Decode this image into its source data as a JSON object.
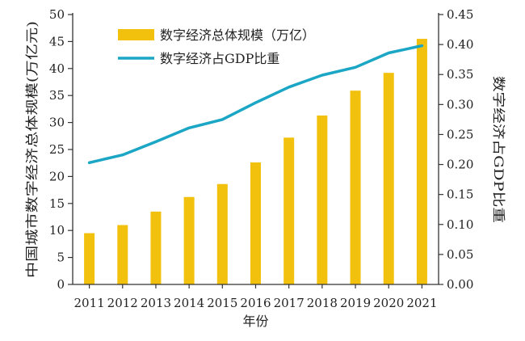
{
  "chart_data": {
    "type": "bar+line",
    "x": [
      "2011",
      "2012",
      "2013",
      "2014",
      "2015",
      "2016",
      "2017",
      "2018",
      "2019",
      "2020",
      "2021"
    ],
    "series": [
      {
        "name": "数字经济总体规模（万亿）",
        "kind": "bar",
        "axis": "left",
        "color": "#f2c10e",
        "values": [
          9.5,
          11.0,
          13.5,
          16.2,
          18.6,
          22.6,
          27.2,
          31.3,
          35.9,
          39.2,
          45.5
        ]
      },
      {
        "name": "数字经济占GDP比重",
        "kind": "line",
        "axis": "right",
        "color": "#1aa6c4",
        "values": [
          0.203,
          0.216,
          0.238,
          0.261,
          0.275,
          0.303,
          0.329,
          0.349,
          0.362,
          0.386,
          0.398
        ]
      }
    ],
    "xlabel": "年份",
    "ylabel_left": "中国城市数字经济总体规模(万亿元)",
    "ylabel_right": "数字经济占GDP比重",
    "ylim_left": [
      0,
      50
    ],
    "yticks_left": [
      "0",
      "5",
      "10",
      "15",
      "20",
      "25",
      "30",
      "35",
      "40",
      "45",
      "50"
    ],
    "ylim_right": [
      0,
      0.45
    ],
    "yticks_right": [
      "0.00",
      "0.05",
      "0.10",
      "0.15",
      "0.20",
      "0.25",
      "0.30",
      "0.35",
      "0.40",
      "0.45"
    ],
    "legend": {
      "position": "top-left-inside",
      "entries": [
        "数字经济总体规模（万亿）",
        "数字经济占GDP比重"
      ]
    },
    "grid": false
  }
}
